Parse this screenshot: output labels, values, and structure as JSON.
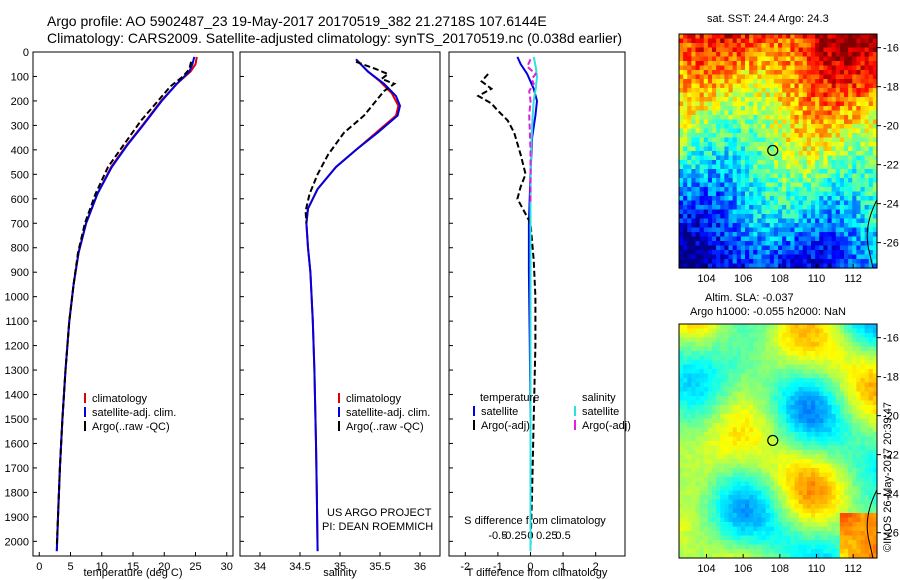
{
  "header": {
    "line1": "Argo profile: AO 5902487_23 19-May-2017 20170519_382 21.2718S 107.6144E",
    "line2": "Climatology: CARS2009. Satellite-adjusted climatology: synTS_20170519.nc (0.038d earlier)"
  },
  "colors": {
    "climatology": "#e00000",
    "satellite": "#0000e0",
    "argo": "#000000",
    "sal_satellite": "#30e0e0",
    "sal_argo": "#e020e0"
  },
  "chart_data": [
    {
      "type": "line",
      "id": "temperature",
      "xlabel": "temperature (deg C)",
      "ylabel": "",
      "xlim": [
        -1,
        31
      ],
      "ylim": [
        2060,
        0
      ],
      "xticks": [
        "0",
        "5",
        "10",
        "15",
        "20",
        "25",
        "30"
      ],
      "xtick_values": [
        0,
        5,
        10,
        15,
        20,
        25,
        30
      ],
      "yticks": [
        "0",
        "100",
        "200",
        "300",
        "400",
        "500",
        "600",
        "700",
        "800",
        "900",
        "1000",
        "1100",
        "1200",
        "1300",
        "1400",
        "1500",
        "1600",
        "1700",
        "1800",
        "1900",
        "2000"
      ],
      "ytick_values": [
        0,
        100,
        200,
        300,
        400,
        500,
        600,
        700,
        800,
        900,
        1000,
        1100,
        1200,
        1300,
        1400,
        1500,
        1600,
        1700,
        1800,
        1900,
        2000
      ],
      "legend": [
        "climatology",
        "satellite-adj. clim.",
        "Argo(..raw -QC)"
      ],
      "series": [
        {
          "name": "climatology",
          "color_key": "climatology",
          "points": [
            [
              25.2,
              20
            ],
            [
              25.0,
              50
            ],
            [
              24.2,
              80
            ],
            [
              22.0,
              130
            ],
            [
              19.5,
              200
            ],
            [
              16.5,
              300
            ],
            [
              14.0,
              380
            ],
            [
              11.5,
              470
            ],
            [
              9.3,
              580
            ],
            [
              7.5,
              700
            ],
            [
              6.3,
              820
            ],
            [
              5.5,
              950
            ],
            [
              4.8,
              1100
            ],
            [
              4.2,
              1300
            ],
            [
              3.7,
              1500
            ],
            [
              3.3,
              1700
            ],
            [
              3.0,
              1900
            ],
            [
              2.8,
              2040
            ]
          ]
        },
        {
          "name": "satellite-adj. clim.",
          "color_key": "satellite",
          "points": [
            [
              24.8,
              20
            ],
            [
              24.5,
              50
            ],
            [
              24.0,
              80
            ],
            [
              22.0,
              130
            ],
            [
              19.6,
              200
            ],
            [
              16.6,
              300
            ],
            [
              14.1,
              380
            ],
            [
              11.6,
              470
            ],
            [
              9.3,
              580
            ],
            [
              7.5,
              700
            ],
            [
              6.3,
              820
            ],
            [
              5.5,
              950
            ],
            [
              4.8,
              1100
            ],
            [
              4.2,
              1300
            ],
            [
              3.7,
              1500
            ],
            [
              3.3,
              1700
            ],
            [
              3.0,
              1900
            ],
            [
              2.8,
              2040
            ]
          ]
        },
        {
          "name": "Argo(..raw -QC)",
          "color_key": "argo",
          "dashed": true,
          "points": [
            [
              24.3,
              40
            ],
            [
              24.0,
              70
            ],
            [
              23.0,
              100
            ],
            [
              21.0,
              140
            ],
            [
              19.0,
              200
            ],
            [
              16.3,
              280
            ],
            [
              13.5,
              380
            ],
            [
              11.0,
              470
            ],
            [
              9.0,
              580
            ],
            [
              7.3,
              700
            ],
            [
              6.2,
              820
            ],
            [
              5.5,
              950
            ],
            [
              4.8,
              1100
            ],
            [
              4.2,
              1300
            ],
            [
              3.7,
              1500
            ],
            [
              3.3,
              1700
            ],
            [
              3.0,
              1900
            ],
            [
              2.8,
              2020
            ]
          ]
        }
      ]
    },
    {
      "type": "line",
      "id": "salinity",
      "xlabel": "salinity",
      "xlim": [
        33.75,
        36.25
      ],
      "ylim": [
        2060,
        0
      ],
      "xticks": [
        "34",
        "34.5",
        "35",
        "35.5",
        "36"
      ],
      "xtick_values": [
        34,
        34.5,
        35,
        35.5,
        36
      ],
      "legend": [
        "climatology",
        "satellite-adj. clim.",
        "Argo(..raw -QC)"
      ],
      "annotation": [
        "US ARGO PROJECT",
        "PI: DEAN ROEMMICH"
      ],
      "series": [
        {
          "name": "climatology",
          "color_key": "climatology",
          "points": [
            [
              35.2,
              30
            ],
            [
              35.35,
              80
            ],
            [
              35.5,
              120
            ],
            [
              35.65,
              170
            ],
            [
              35.73,
              220
            ],
            [
              35.7,
              260
            ],
            [
              35.45,
              330
            ],
            [
              35.2,
              400
            ],
            [
              34.95,
              470
            ],
            [
              34.72,
              560
            ],
            [
              34.6,
              640
            ],
            [
              34.58,
              700
            ],
            [
              34.6,
              800
            ],
            [
              34.63,
              900
            ],
            [
              34.66,
              1100
            ],
            [
              34.68,
              1300
            ],
            [
              34.7,
              1600
            ],
            [
              34.71,
              1800
            ],
            [
              34.72,
              2040
            ]
          ]
        },
        {
          "name": "satellite-adj. clim.",
          "color_key": "satellite",
          "points": [
            [
              35.2,
              30
            ],
            [
              35.35,
              80
            ],
            [
              35.55,
              130
            ],
            [
              35.7,
              180
            ],
            [
              35.75,
              220
            ],
            [
              35.72,
              260
            ],
            [
              35.47,
              330
            ],
            [
              35.2,
              400
            ],
            [
              34.95,
              470
            ],
            [
              34.72,
              560
            ],
            [
              34.6,
              640
            ],
            [
              34.58,
              700
            ],
            [
              34.6,
              800
            ],
            [
              34.63,
              900
            ],
            [
              34.66,
              1100
            ],
            [
              34.68,
              1300
            ],
            [
              34.7,
              1600
            ],
            [
              34.71,
              1800
            ],
            [
              34.72,
              2040
            ]
          ]
        },
        {
          "name": "Argo(..raw -QC)",
          "color_key": "argo",
          "dashed": true,
          "points": [
            [
              35.2,
              40
            ],
            [
              35.45,
              70
            ],
            [
              35.6,
              90
            ],
            [
              35.52,
              110
            ],
            [
              35.68,
              130
            ],
            [
              35.55,
              160
            ],
            [
              35.45,
              200
            ],
            [
              35.3,
              260
            ],
            [
              35.05,
              330
            ],
            [
              34.85,
              420
            ],
            [
              34.72,
              500
            ],
            [
              34.62,
              580
            ],
            [
              34.57,
              650
            ],
            [
              34.58,
              700
            ]
          ]
        }
      ]
    },
    {
      "type": "line",
      "id": "difference",
      "xlabel": "T difference from climatology",
      "top_label": "S difference from climatology",
      "xlim": [
        -2.5,
        2.9
      ],
      "ylim": [
        2060,
        0
      ],
      "xticks": [
        "-2",
        "-1",
        "0",
        "1",
        "2"
      ],
      "xtick_values": [
        -2,
        -1,
        0,
        1,
        2
      ],
      "sticks": [
        "-0.5",
        "-0.25",
        "0",
        "0.25",
        "0.5"
      ],
      "stick_values": [
        -0.5,
        -0.25,
        0,
        0.25,
        0.5
      ],
      "legend_temperature": {
        "title": "temperature",
        "items": [
          "satellite",
          "Argo(-adj)"
        ]
      },
      "legend_salinity": {
        "title": "salinity",
        "items": [
          "satellite",
          "Argo(-adj)"
        ]
      },
      "series": [
        {
          "name": "T satellite",
          "color_key": "satellite",
          "units": "T",
          "points": [
            [
              -0.4,
              20
            ],
            [
              -0.3,
              50
            ],
            [
              -0.1,
              90
            ],
            [
              0.1,
              150
            ],
            [
              0.2,
              200
            ],
            [
              0.15,
              260
            ],
            [
              0.05,
              350
            ],
            [
              0.0,
              500
            ],
            [
              -0.05,
              700
            ],
            [
              -0.05,
              900
            ],
            [
              -0.02,
              1200
            ],
            [
              0.0,
              1500
            ],
            [
              0.0,
              2040
            ]
          ]
        },
        {
          "name": "T Argo(-adj)",
          "color_key": "argo",
          "units": "T",
          "dashed": true,
          "points": [
            [
              -1.3,
              90
            ],
            [
              -1.5,
              120
            ],
            [
              -1.2,
              150
            ],
            [
              -1.6,
              180
            ],
            [
              -1.2,
              210
            ],
            [
              -1.0,
              240
            ],
            [
              -0.7,
              280
            ],
            [
              -0.5,
              330
            ],
            [
              -0.3,
              420
            ],
            [
              -0.15,
              500
            ],
            [
              -0.3,
              550
            ],
            [
              -0.4,
              600
            ],
            [
              -0.2,
              650
            ],
            [
              0.0,
              700
            ],
            [
              0.1,
              850
            ],
            [
              0.15,
              1000
            ],
            [
              0.15,
              1200
            ],
            [
              0.1,
              1500
            ],
            [
              0.05,
              1800
            ],
            [
              0.0,
              2020
            ]
          ]
        },
        {
          "name": "S satellite",
          "color_key": "sal_satellite",
          "units": "S",
          "points": [
            [
              0.05,
              20
            ],
            [
              0.08,
              60
            ],
            [
              0.1,
              100
            ],
            [
              0.08,
              150
            ],
            [
              0.05,
              200
            ],
            [
              0.03,
              280
            ],
            [
              0.01,
              400
            ],
            [
              0.0,
              600
            ],
            [
              0.0,
              800
            ],
            [
              0.0,
              2040
            ]
          ]
        },
        {
          "name": "S Argo(-adj)",
          "color_key": "sal_argo",
          "units": "S",
          "dashed": true,
          "points": [
            [
              0.0,
              30
            ],
            [
              -0.05,
              60
            ],
            [
              0.08,
              90
            ],
            [
              0.02,
              110
            ],
            [
              0.05,
              130
            ],
            [
              -0.02,
              160
            ],
            [
              0.0,
              200
            ],
            [
              -0.02,
              260
            ],
            [
              -0.01,
              320
            ],
            [
              0.0,
              400
            ],
            [
              0.0,
              520
            ],
            [
              0.0,
              620
            ]
          ]
        }
      ]
    },
    {
      "type": "heatmap",
      "id": "sst_map",
      "title": "sat. SST: 24.4  Argo: 24.3",
      "xlim": [
        102.5,
        113.3
      ],
      "ylim": [
        -27.3,
        -15.3
      ],
      "xticks": [
        "104",
        "106",
        "108",
        "110",
        "112"
      ],
      "xtick_values": [
        104,
        106,
        108,
        110,
        112
      ],
      "yticks": [
        "-16",
        "-18",
        "-20",
        "-22",
        "-24",
        "-26"
      ],
      "ytick_values": [
        -16,
        -18,
        -20,
        -22,
        -24,
        -26
      ],
      "float_position": [
        107.6144,
        -21.2718
      ]
    },
    {
      "type": "heatmap",
      "id": "sla_map",
      "title": "Altim. SLA: -0.037",
      "title2": "Argo h1000: -0.055 h2000: NaN",
      "xlim": [
        102.5,
        113.3
      ],
      "ylim": [
        -27.3,
        -15.3
      ],
      "xticks": [
        "104",
        "106",
        "108",
        "110",
        "112"
      ],
      "xtick_values": [
        104,
        106,
        108,
        110,
        112
      ],
      "yticks": [
        "-16",
        "-18",
        "-20",
        "-22",
        "-24",
        "-26"
      ],
      "ytick_values": [
        -16,
        -18,
        -20,
        -22,
        -24,
        -26
      ],
      "float_position": [
        107.6144,
        -21.2718
      ]
    }
  ],
  "footer": {
    "stamp": "©IMOS 26-May-2017 20:39:47"
  }
}
